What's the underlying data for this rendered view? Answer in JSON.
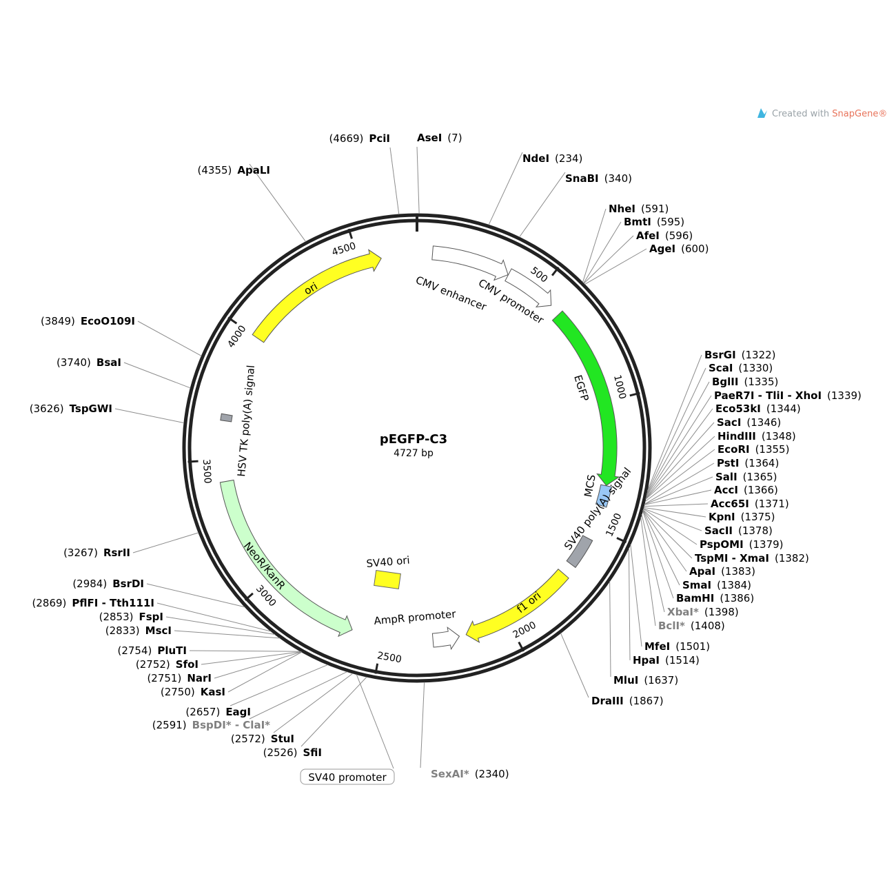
{
  "plasmid": {
    "name": "pEGFP-C3",
    "length_label": "4727 bp",
    "length": 4727
  },
  "credit": {
    "prefix": "Created with ",
    "brand": "SnapGene®"
  },
  "ticks": [
    {
      "label": "500",
      "pos": 500
    },
    {
      "label": "1000",
      "pos": 1000
    },
    {
      "label": "1500",
      "pos": 1500
    },
    {
      "label": "2000",
      "pos": 2000
    },
    {
      "label": "2500",
      "pos": 2500
    },
    {
      "label": "3000",
      "pos": 3000
    },
    {
      "label": "3500",
      "pos": 3500
    },
    {
      "label": "4000",
      "pos": 4000
    },
    {
      "label": "4500",
      "pos": 4500
    }
  ],
  "features": [
    {
      "label": "CMV enhancer",
      "start": 60,
      "end": 364,
      "type": "arrow",
      "color": "#ffffff"
    },
    {
      "label": "CMV promoter",
      "start": 365,
      "end": 568,
      "type": "arrow",
      "color": "#ffffff"
    },
    {
      "label": "EGFP",
      "start": 613,
      "end": 1329,
      "type": "arrow",
      "color": "#22e622"
    },
    {
      "label": "MCS",
      "start": 1330,
      "end": 1410,
      "type": "box",
      "color": "#99c7f5"
    },
    {
      "label": "SV40 poly(A) signal",
      "start": 1547,
      "end": 1668,
      "type": "box",
      "color": "#a0a4ab"
    },
    {
      "label": "f1 ori",
      "start": 1715,
      "end": 2170,
      "type": "arrow",
      "color": "#ffff22"
    },
    {
      "label": "AmpR promoter",
      "start": 2197,
      "end": 2301,
      "type": "arrow",
      "color": "#ffffff"
    },
    {
      "label": "SV40 ori",
      "start": 2480,
      "end": 2580,
      "type": "box",
      "color": "#ffff22"
    },
    {
      "label": "NeoR/KanR",
      "start": 2621,
      "end": 3415,
      "type": "arrow",
      "color": "#ccffcc"
    },
    {
      "label": "HSV TK poly(A) signal",
      "start": 3651,
      "end": 3668,
      "type": "box",
      "color": "#a0a4ab"
    },
    {
      "label": "ori",
      "start": 3999,
      "end": 4587,
      "type": "arrow",
      "color": "#ffff22"
    }
  ],
  "boxed_feature": {
    "label": "SV40 promoter"
  },
  "sites": [
    {
      "name": "AseI",
      "pos": "(7)",
      "side": "right",
      "gray": false
    },
    {
      "name": "NdeI",
      "pos": "(234)",
      "side": "right",
      "gray": false
    },
    {
      "name": "SnaBI",
      "pos": "(340)",
      "side": "right",
      "gray": false
    },
    {
      "name": "NheI",
      "pos": "(591)",
      "side": "right",
      "gray": false
    },
    {
      "name": "BmtI",
      "pos": "(595)",
      "side": "right",
      "gray": false
    },
    {
      "name": "AfeI",
      "pos": "(596)",
      "side": "right",
      "gray": false
    },
    {
      "name": "AgeI",
      "pos": "(600)",
      "side": "right",
      "gray": false
    },
    {
      "name": "BsrGI",
      "pos": "(1322)",
      "side": "right",
      "gray": false
    },
    {
      "name": "ScaI",
      "pos": "(1330)",
      "side": "right",
      "gray": false
    },
    {
      "name": "BglII",
      "pos": "(1335)",
      "side": "right",
      "gray": false
    },
    {
      "name": "PaeR7I - TliI - XhoI",
      "pos": "(1339)",
      "side": "right",
      "gray": false
    },
    {
      "name": "Eco53kI",
      "pos": "(1344)",
      "side": "right",
      "gray": false
    },
    {
      "name": "SacI",
      "pos": "(1346)",
      "side": "right",
      "gray": false
    },
    {
      "name": "HindIII",
      "pos": "(1348)",
      "side": "right",
      "gray": false
    },
    {
      "name": "EcoRI",
      "pos": "(1355)",
      "side": "right",
      "gray": false
    },
    {
      "name": "PstI",
      "pos": "(1364)",
      "side": "right",
      "gray": false
    },
    {
      "name": "SalI",
      "pos": "(1365)",
      "side": "right",
      "gray": false
    },
    {
      "name": "AccI",
      "pos": "(1366)",
      "side": "right",
      "gray": false
    },
    {
      "name": "Acc65I",
      "pos": "(1371)",
      "side": "right",
      "gray": false
    },
    {
      "name": "KpnI",
      "pos": "(1375)",
      "side": "right",
      "gray": false
    },
    {
      "name": "SacII",
      "pos": "(1378)",
      "side": "right",
      "gray": false
    },
    {
      "name": "PspOMI",
      "pos": "(1379)",
      "side": "right",
      "gray": false
    },
    {
      "name": "TspMI - XmaI",
      "pos": "(1382)",
      "side": "right",
      "gray": false
    },
    {
      "name": "ApaI",
      "pos": "(1383)",
      "side": "right",
      "gray": false
    },
    {
      "name": "SmaI",
      "pos": "(1384)",
      "side": "right",
      "gray": false
    },
    {
      "name": "BamHI",
      "pos": "(1386)",
      "side": "right",
      "gray": false
    },
    {
      "name": "XbaI*",
      "pos": "(1398)",
      "side": "right",
      "gray": true
    },
    {
      "name": "BclI*",
      "pos": "(1408)",
      "side": "right",
      "gray": true
    },
    {
      "name": "MfeI",
      "pos": "(1501)",
      "side": "right",
      "gray": false
    },
    {
      "name": "HpaI",
      "pos": "(1514)",
      "side": "right",
      "gray": false
    },
    {
      "name": "MluI",
      "pos": "(1637)",
      "side": "right",
      "gray": false
    },
    {
      "name": "DraIII",
      "pos": "(1867)",
      "side": "right",
      "gray": false
    },
    {
      "name": "SexAI*",
      "pos": "(2340)",
      "side": "right",
      "gray": true
    },
    {
      "name": "SfiI",
      "pos": "(2526)",
      "side": "left",
      "gray": false
    },
    {
      "name": "StuI",
      "pos": "(2572)",
      "side": "left",
      "gray": false
    },
    {
      "name": "BspDI* - ClaI*",
      "pos": "(2591)",
      "side": "left",
      "gray": true
    },
    {
      "name": "EagI",
      "pos": "(2657)",
      "side": "left",
      "gray": false
    },
    {
      "name": "KasI",
      "pos": "(2750)",
      "side": "left",
      "gray": false
    },
    {
      "name": "NarI",
      "pos": "(2751)",
      "side": "left",
      "gray": false
    },
    {
      "name": "SfoI",
      "pos": "(2752)",
      "side": "left",
      "gray": false
    },
    {
      "name": "PluTI",
      "pos": "(2754)",
      "side": "left",
      "gray": false
    },
    {
      "name": "MscI",
      "pos": "(2833)",
      "side": "left",
      "gray": false
    },
    {
      "name": "FspI",
      "pos": "(2853)",
      "side": "left",
      "gray": false
    },
    {
      "name": "PflFI - Tth111I",
      "pos": "(2869)",
      "side": "left",
      "gray": false
    },
    {
      "name": "BsrDI",
      "pos": "(2984)",
      "side": "left",
      "gray": false
    },
    {
      "name": "RsrII",
      "pos": "(3267)",
      "side": "left",
      "gray": false
    },
    {
      "name": "TspGWI",
      "pos": "(3626)",
      "side": "left",
      "gray": false
    },
    {
      "name": "BsaI",
      "pos": "(3740)",
      "side": "left",
      "gray": false
    },
    {
      "name": "EcoO109I",
      "pos": "(3849)",
      "side": "left",
      "gray": false
    },
    {
      "name": "ApaLI",
      "pos": "(4355)",
      "side": "left",
      "gray": false
    },
    {
      "name": "PciI",
      "pos": "(4669)",
      "side": "left",
      "gray": false
    }
  ]
}
